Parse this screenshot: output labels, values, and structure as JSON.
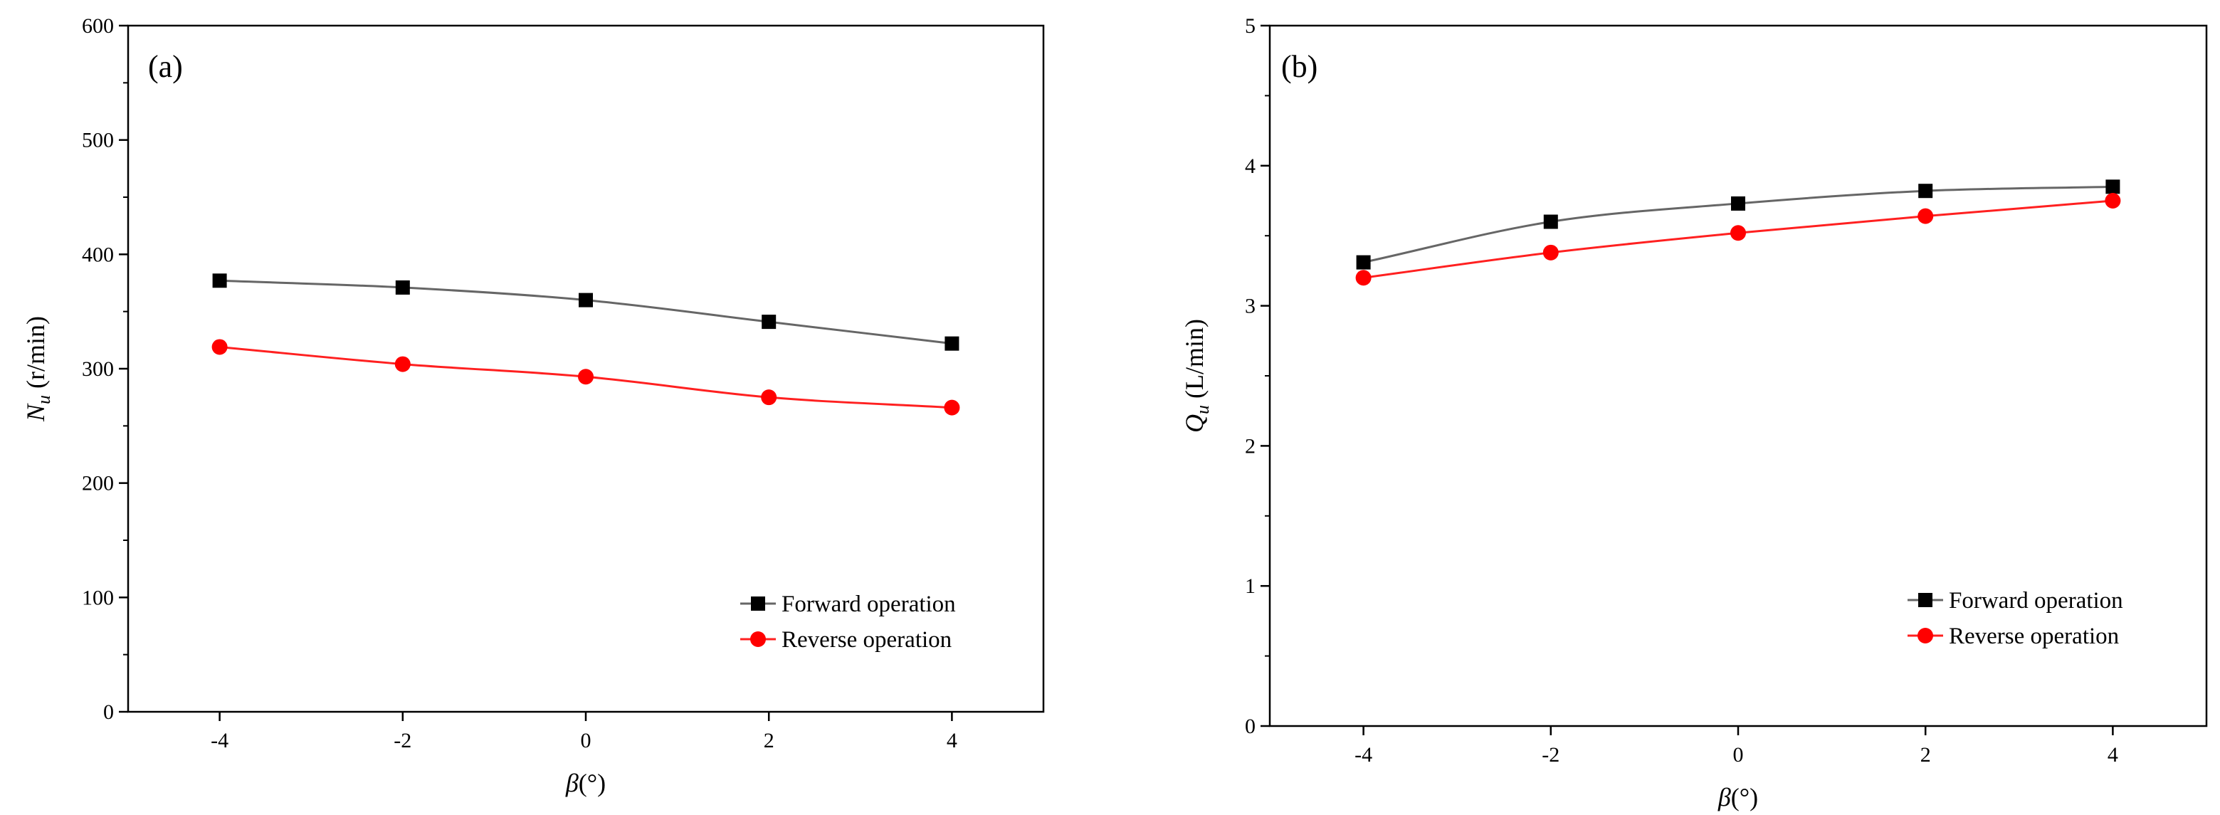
{
  "chart_data": [
    {
      "type": "line",
      "panel_label": "(a)",
      "title": "",
      "xlabel": {
        "symbol": "β",
        "unit": "(°)"
      },
      "ylabel": {
        "symbol": "N",
        "subscript": "u",
        "unit": "(r/min)"
      },
      "xlim": [
        -5,
        5
      ],
      "ylim": [
        0,
        600
      ],
      "xticks": [
        -4,
        -2,
        0,
        2,
        4
      ],
      "xtick_labels": [
        "-4",
        "-2",
        "0",
        "2",
        "4"
      ],
      "yticks": [
        0,
        100,
        200,
        300,
        400,
        500,
        600
      ],
      "ytick_labels": [
        "0",
        "100",
        "200",
        "300",
        "400",
        "500",
        "600"
      ],
      "x": [
        -4,
        -2,
        0,
        2,
        4
      ],
      "grid": false,
      "legend_position": "bottom-right",
      "series": [
        {
          "name": "Forward operation",
          "marker": "square",
          "color": "#000000",
          "line_color": "#666666",
          "values": [
            377,
            371,
            360,
            341,
            322
          ]
        },
        {
          "name": "Reverse operation",
          "marker": "circle",
          "color": "#ff0000",
          "line_color": "#ff2020",
          "values": [
            319,
            304,
            293,
            275,
            266
          ]
        }
      ]
    },
    {
      "type": "line",
      "panel_label": "(b)",
      "title": "",
      "xlabel": {
        "symbol": "β",
        "unit": "(°)"
      },
      "ylabel": {
        "symbol": "Q",
        "subscript": "u",
        "unit": "(L/min)"
      },
      "xlim": [
        -5,
        5
      ],
      "ylim": [
        0,
        5
      ],
      "xticks": [
        -4,
        -2,
        0,
        2,
        4
      ],
      "xtick_labels": [
        "-4",
        "-2",
        "0",
        "2",
        "4"
      ],
      "yticks": [
        0,
        1,
        2,
        3,
        4,
        5
      ],
      "ytick_labels": [
        "0",
        "1",
        "2",
        "3",
        "4",
        "5"
      ],
      "x": [
        -4,
        -2,
        0,
        2,
        4
      ],
      "grid": false,
      "legend_position": "bottom-right",
      "series": [
        {
          "name": "Forward operation",
          "marker": "square",
          "color": "#000000",
          "line_color": "#666666",
          "values": [
            3.31,
            3.6,
            3.73,
            3.82,
            3.85
          ]
        },
        {
          "name": "Reverse operation",
          "marker": "circle",
          "color": "#ff0000",
          "line_color": "#ff2020",
          "values": [
            3.2,
            3.38,
            3.52,
            3.64,
            3.75
          ]
        }
      ]
    }
  ]
}
